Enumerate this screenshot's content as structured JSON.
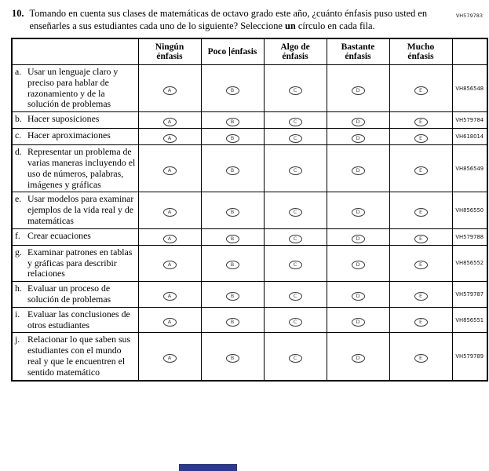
{
  "page": {
    "top_right_code": "VH579783",
    "accent_color": "#2b3990"
  },
  "question": {
    "number": "10.",
    "text_part1": "Tomando en cuenta sus clases de matemáticas de octavo grado este año, ¿cuánto énfasis puso usted en enseñarles a sus estudiantes cada uno de lo siguiente? Seleccione ",
    "text_bold": "un",
    "text_part2": " círculo en cada fila."
  },
  "table": {
    "columns": [
      {
        "lines": [
          "Ningún",
          "énfasis"
        ],
        "oval_letter": "A",
        "has_cursor": false
      },
      {
        "lines": [
          "Poco énfasis"
        ],
        "oval_letter": "B",
        "has_cursor": true
      },
      {
        "lines": [
          "Algo de",
          "énfasis"
        ],
        "oval_letter": "C",
        "has_cursor": false
      },
      {
        "lines": [
          "Bastante",
          "énfasis"
        ],
        "oval_letter": "D",
        "has_cursor": false
      },
      {
        "lines": [
          "Mucho",
          "énfasis"
        ],
        "oval_letter": "E",
        "has_cursor": false
      }
    ],
    "rows": [
      {
        "letter": "a.",
        "text": "Usar un lenguaje claro y preciso para hablar de razonamiento y de la solución de problemas",
        "code": "VH856548"
      },
      {
        "letter": "b.",
        "text": "Hacer suposiciones",
        "code": "VH579784"
      },
      {
        "letter": "c.",
        "text": "Hacer aproximaciones",
        "code": "VH618014"
      },
      {
        "letter": "d.",
        "text": "Representar un problema de varias maneras incluyendo el uso de números, palabras, imágenes y gráficas",
        "code": "VH856549"
      },
      {
        "letter": "e.",
        "text": "Usar modelos para examinar ejemplos de la vida real y de matemáticas",
        "code": "VH856550"
      },
      {
        "letter": "f.",
        "text": "Crear ecuaciones",
        "code": "VH579788"
      },
      {
        "letter": "g.",
        "text": "Examinar patrones en tablas y gráficas para describir relaciones",
        "code": "VH856552"
      },
      {
        "letter": "h.",
        "text": "Evaluar un proceso de solución de problemas",
        "code": "VH579787"
      },
      {
        "letter": "i.",
        "text": "Evaluar las conclusiones de otros estudiantes",
        "code": "VH856551"
      },
      {
        "letter": "j.",
        "text": "Relacionar lo que saben sus estudiantes con el mundo real y que le encuentren el sentido matemático",
        "code": "VH579789"
      }
    ]
  }
}
